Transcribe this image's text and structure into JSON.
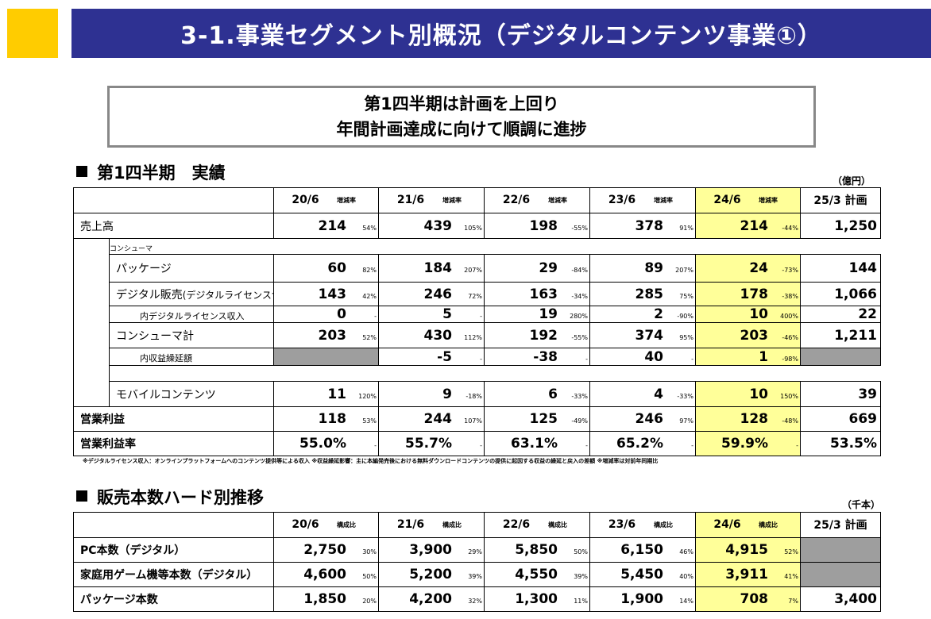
{
  "header": {
    "title": "3-1.事業セグメント別概況（デジタルコンテンツ事業①）"
  },
  "summary": {
    "line1": "第1四半期は計画を上回り",
    "line2": "年間計画達成に向けて順調に進捗"
  },
  "section1": {
    "title": "第1四半期　実績",
    "unit": "（億円）",
    "periods": [
      "20/6",
      "21/6",
      "22/6",
      "23/6",
      "24/6"
    ],
    "rate_label": "増減率",
    "plan_label": "25/3 計画",
    "rows": {
      "sales": {
        "label": "売上高",
        "values": [
          "214",
          "439",
          "198",
          "378",
          "214"
        ],
        "rates": [
          "54%",
          "105%",
          "-55%",
          "91%",
          "-44%"
        ],
        "plan": "1,250"
      },
      "consumer_header": "コンシューマ",
      "package": {
        "label": "パッケージ",
        "values": [
          "60",
          "184",
          "29",
          "89",
          "24"
        ],
        "rates": [
          "82%",
          "207%",
          "-84%",
          "207%",
          "-73%"
        ],
        "plan": "144"
      },
      "digital": {
        "label": "デジタル販売",
        "label_note": "(デジタルライセンス含む)",
        "values": [
          "143",
          "246",
          "163",
          "285",
          "178"
        ],
        "rates": [
          "42%",
          "72%",
          "-34%",
          "75%",
          "-38%"
        ],
        "plan": "1,066"
      },
      "digital_license": {
        "label": "内デジタルライセンス収入",
        "values": [
          "0",
          "5",
          "19",
          "2",
          "10"
        ],
        "rates": [
          "-",
          "-",
          "280%",
          "-90%",
          "400%"
        ],
        "plan": "22"
      },
      "consumer_total": {
        "label": "コンシューマ計",
        "values": [
          "203",
          "430",
          "192",
          "374",
          "203"
        ],
        "rates": [
          "52%",
          "112%",
          "-55%",
          "95%",
          "-46%"
        ],
        "plan": "1,211"
      },
      "deferred": {
        "label": "内収益繰延額",
        "values": [
          "",
          "-5",
          "-38",
          "40",
          "1"
        ],
        "rates": [
          "",
          "-",
          "-",
          "-",
          "-98%"
        ],
        "plan": ""
      },
      "mobile": {
        "label": "モバイルコンテンツ",
        "values": [
          "11",
          "9",
          "6",
          "4",
          "10"
        ],
        "rates": [
          "120%",
          "-18%",
          "-33%",
          "-33%",
          "150%"
        ],
        "plan": "39"
      },
      "op_profit": {
        "label": "営業利益",
        "values": [
          "118",
          "244",
          "125",
          "246",
          "128"
        ],
        "rates": [
          "53%",
          "107%",
          "-49%",
          "97%",
          "-48%"
        ],
        "plan": "669"
      },
      "op_margin": {
        "label": "営業利益率",
        "values": [
          "55.0%",
          "55.7%",
          "63.1%",
          "65.2%",
          "59.9%"
        ],
        "rates": [
          "-",
          "-",
          "-",
          "-",
          "-"
        ],
        "plan": "53.5%"
      }
    }
  },
  "footnote": "※デジタルライセンス収入：オンラインプラットフォームへのコンテンツ提供等による収入 ※収益繰延影響：主に本編発売後における無料ダウンロードコンテンツの提供に起因する収益の繰延と戻入の差額 ※増減率は対前年同期比",
  "section2": {
    "title": "販売本数ハード別推移",
    "unit": "（千本）",
    "periods": [
      "20/6",
      "21/6",
      "22/6",
      "23/6",
      "24/6"
    ],
    "ratio_label": "構成比",
    "plan_label": "25/3 計画",
    "rows": [
      {
        "label": "PC本数（デジタル）",
        "values": [
          "2,750",
          "3,900",
          "5,850",
          "6,150",
          "4,915"
        ],
        "ratios": [
          "30%",
          "29%",
          "50%",
          "46%",
          "52%"
        ],
        "plan": ""
      },
      {
        "label": "家庭用ゲーム機等本数（デジタル）",
        "values": [
          "4,600",
          "5,200",
          "4,550",
          "5,450",
          "3,911"
        ],
        "ratios": [
          "50%",
          "39%",
          "39%",
          "40%",
          "41%"
        ],
        "plan": ""
      },
      {
        "label": "パッケージ本数",
        "values": [
          "1,850",
          "4,200",
          "1,300",
          "1,900",
          "708"
        ],
        "ratios": [
          "20%",
          "32%",
          "11%",
          "14%",
          "7%"
        ],
        "plan": "3,400"
      }
    ]
  }
}
